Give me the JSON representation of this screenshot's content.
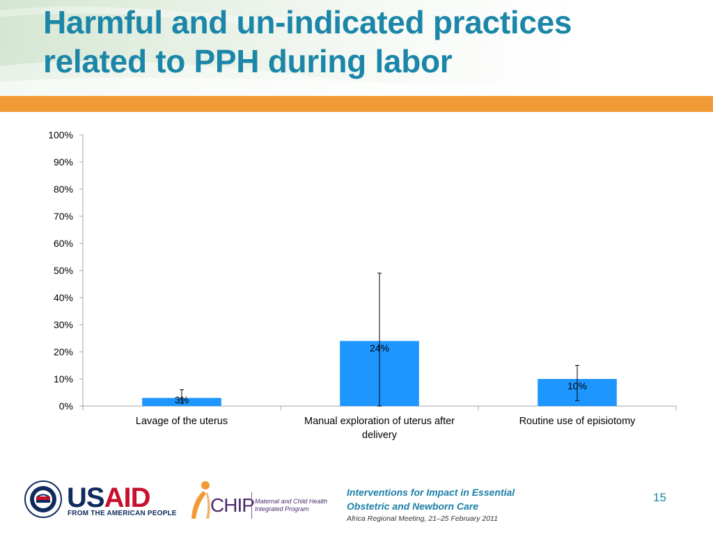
{
  "slide": {
    "title_line1": "Harmful and un-indicated practices",
    "title_line2": "related to PPH during labor",
    "page_number": "15",
    "accent_color": "#1b86a8",
    "band_color": "#f29a38"
  },
  "footer": {
    "line1": "Interventions for Impact in Essential",
    "line2": "Obstetric and Newborn Care",
    "line3": "Africa Regional Meeting, 21–25 February 2011"
  },
  "logos": {
    "usaid": {
      "wordmark": "USAID",
      "tagline": "FROM THE AMERICAN PEOPLE",
      "seal_icon": "usaid-seal"
    },
    "mchip": {
      "wordmark": "CHIP",
      "sub_line1": "Maternal and Child Health",
      "sub_line2": "Integrated Program",
      "mark_icon": "mchip-figure"
    }
  },
  "chart_data": {
    "type": "bar",
    "title": "",
    "xlabel": "",
    "ylabel": "",
    "categories": [
      [
        "Lavage of the uterus"
      ],
      [
        "Manual exploration of uterus after",
        "delivery"
      ],
      [
        "Routine use of episiotomy"
      ]
    ],
    "values": [
      3,
      24,
      10
    ],
    "data_labels": [
      "3%",
      "24%",
      "10%"
    ],
    "error_bars": [
      {
        "low": 1,
        "high": 6
      },
      {
        "low": 0,
        "high": 49
      },
      {
        "low": 2,
        "high": 15
      }
    ],
    "ylim": [
      0,
      100
    ],
    "yticks": [
      0,
      10,
      20,
      30,
      40,
      50,
      60,
      70,
      80,
      90,
      100
    ],
    "ytick_labels": [
      "0%",
      "10%",
      "20%",
      "30%",
      "40%",
      "50%",
      "60%",
      "70%",
      "80%",
      "90%",
      "100%"
    ],
    "grid": false,
    "legend": "none",
    "bar_color": "#1e96ff",
    "axis_color": "#a6a6a6"
  }
}
